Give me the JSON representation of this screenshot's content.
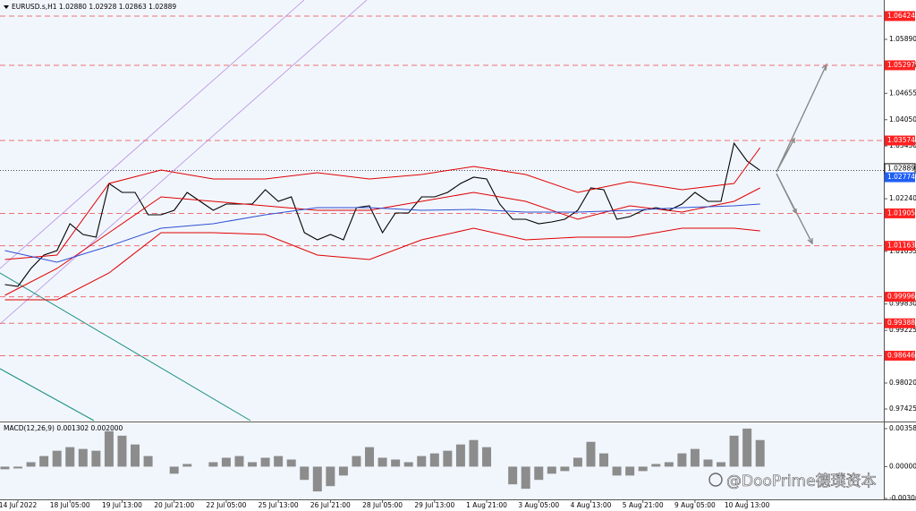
{
  "chart_data": [
    {
      "type": "line",
      "title": "EURUSD.s,H1  1.02880 1.02928 1.02863 1.02889",
      "xlim": [
        -11,
        532
      ],
      "ylim": [
        0.97159,
        1.06792
      ],
      "x": [
        -8,
        0,
        8,
        16,
        24,
        32,
        40,
        48,
        56,
        64,
        72,
        80,
        88,
        96,
        104,
        112,
        120,
        128,
        136,
        144,
        152,
        160,
        168,
        176,
        184,
        192,
        200,
        208,
        216,
        224,
        232,
        240,
        248,
        256,
        264,
        272,
        280,
        288,
        296,
        304,
        312,
        320,
        328,
        336,
        344,
        352,
        360,
        368,
        376,
        384,
        392,
        400,
        408,
        416,
        424,
        432,
        440,
        448,
        456
      ],
      "xticks": [
        {
          "value": 0,
          "label": "14 Jul 2022"
        },
        {
          "value": 32,
          "label": "18 Jul 05:00"
        },
        {
          "value": 64,
          "label": "19 Jul 13:00"
        },
        {
          "value": 96,
          "label": "20 Jul 21:00"
        },
        {
          "value": 128,
          "label": "22 Jul 05:00"
        },
        {
          "value": 160,
          "label": "25 Jul 13:00"
        },
        {
          "value": 192,
          "label": "26 Jul 21:00"
        },
        {
          "value": 224,
          "label": "28 Jul 05:00"
        },
        {
          "value": 256,
          "label": "29 Jul 13:00"
        },
        {
          "value": 288,
          "label": "1 Aug 21:00"
        },
        {
          "value": 320,
          "label": "3 Aug 05:00"
        },
        {
          "value": 352,
          "label": "4 Aug 13:00"
        },
        {
          "value": 384,
          "label": "5 Aug 21:00"
        },
        {
          "value": 416,
          "label": "9 Aug 05:00"
        },
        {
          "value": 448,
          "label": "10 Aug 13:00"
        }
      ],
      "yticks": [
        {
          "value": 1.0589,
          "label": "1.05890"
        },
        1.05285,
        1.04655,
        {
          "value": 1.0405,
          "label": "1.04050"
        },
        {
          "value": 1.0345,
          "label": "1.03450"
        },
        {
          "value": 1.0224,
          "label": "1.02240"
        },
        1.01035,
        {
          "value": 0.9983,
          "label": "0.99830"
        },
        0.99225,
        {
          "value": 0.9802,
          "label": "0.98020"
        },
        0.97425
      ],
      "levels": [
        1.06424,
        1.05297,
        1.03574,
        1.01905,
        1.01163,
        0.99996,
        0.99388,
        0.98646
      ],
      "price_labels": [
        1.02889,
        1.02774
      ],
      "series": [
        {
          "color": "#000000",
          "values": [
            1.00274,
            1.00233,
            1.00643,
            1.0095,
            1.01053,
            1.01668,
            1.01422,
            1.0136,
            1.0259,
            1.02385,
            1.02385,
            1.01873,
            1.01873,
            1.01975,
            1.02385,
            1.0218,
            1.01975,
            1.02119,
            1.02119,
            1.02119,
            1.02447,
            1.0218,
            1.02283,
            1.01463,
            1.01299,
            1.01422,
            1.01299,
            1.02037,
            1.02078,
            1.01463,
            1.01914,
            1.01914,
            1.02283,
            1.02283,
            1.02385,
            1.0259,
            1.02734,
            1.02693,
            1.02119,
            1.0177,
            1.0177,
            1.01668,
            1.01709,
            1.0177,
            1.01975,
            1.02488,
            1.02447,
            1.0177,
            1.01832,
            1.01975,
            1.02037,
            1.01975,
            1.02119,
            1.02385,
            1.0218,
            1.0218,
            1.03512,
            1.03103,
            1.02889
          ]
        },
        {
          "color": "#e00000",
          "x": [
            -8,
            24,
            56,
            88,
            120,
            152,
            184,
            216,
            248,
            280,
            312,
            344,
            376,
            408,
            440,
            456
          ],
          "values": [
            1.00848,
            1.0095,
            1.0259,
            1.02898,
            1.02693,
            1.02693,
            1.02836,
            1.02693,
            1.02795,
            1.0298,
            1.02795,
            1.02385,
            1.02631,
            1.02447,
            1.0259,
            1.0341
          ]
        },
        {
          "color": "#e00000",
          "x": [
            -8,
            24,
            56,
            88,
            120,
            152,
            184,
            216,
            248,
            280,
            312,
            344,
            376,
            408,
            440,
            456
          ],
          "values": [
            1.00028,
            1.00643,
            1.01463,
            1.02283,
            1.0218,
            1.02078,
            1.01975,
            1.01975,
            1.0218,
            1.02385,
            1.0218,
            1.0177,
            1.02078,
            1.01934,
            1.0218,
            1.02488
          ]
        },
        {
          "color": "#e00000",
          "x": [
            -8,
            24,
            56,
            88,
            120,
            152,
            184,
            216,
            248,
            280,
            312,
            344,
            376,
            408,
            440,
            456
          ],
          "values": [
            0.99926,
            0.99926,
            1.00541,
            1.01463,
            1.01463,
            1.01422,
            1.0095,
            1.00848,
            1.01299,
            1.01565,
            1.01299,
            1.0136,
            1.0136,
            1.01565,
            1.01565,
            1.01504
          ]
        },
        {
          "color": "#3050d0",
          "x": [
            -8,
            24,
            56,
            88,
            120,
            152,
            184,
            216,
            248,
            280,
            312,
            344,
            376,
            408,
            440,
            456
          ],
          "values": [
            1.01053,
            1.00786,
            1.01155,
            1.01565,
            1.01668,
            1.01873,
            1.02037,
            1.02037,
            1.01975,
            1.01996,
            1.01934,
            1.01934,
            1.01975,
            1.02037,
            1.02078,
            1.02119
          ]
        }
      ]
    },
    {
      "type": "bar",
      "title": "MACD(12,26,9) 0.001302 0.002000",
      "color": "#8c8c8c",
      "ylim": [
        -0.00309,
        0.00409
      ],
      "yticks": [
        0.003588,
        {
          "value": 0,
          "label": "0.000000"
        },
        -0.003009
      ],
      "values": [
        -0.00025,
        -0.00017,
        0.00042,
        0.001,
        0.0015,
        0.00184,
        0.00167,
        0.0015,
        0.00334,
        0.00292,
        0.00209,
        0.001,
        0,
        -0.00067,
        0.00025,
        0,
        0.00042,
        0.00084,
        0.001,
        0.00042,
        0.00084,
        0.001,
        0.00067,
        -0.00125,
        -0.00234,
        -0.00184,
        -0.00084,
        0.001,
        0.00184,
        0.00084,
        0.00067,
        0.00042,
        0.001,
        0.00125,
        0.0015,
        0.00209,
        0.00251,
        0.00184,
        0,
        -0.00167,
        -0.00209,
        -0.00125,
        -0.00067,
        -0.00042,
        0.00084,
        0.00234,
        0.00125,
        -0.00084,
        -0.00084,
        -0.00042,
        0.00025,
        0.00042,
        0.00125,
        0.00167,
        0.00067,
        0.00042,
        0.00292,
        0.00359,
        0.00251
      ]
    }
  ],
  "watermark": "@DooPrime德璞资本"
}
